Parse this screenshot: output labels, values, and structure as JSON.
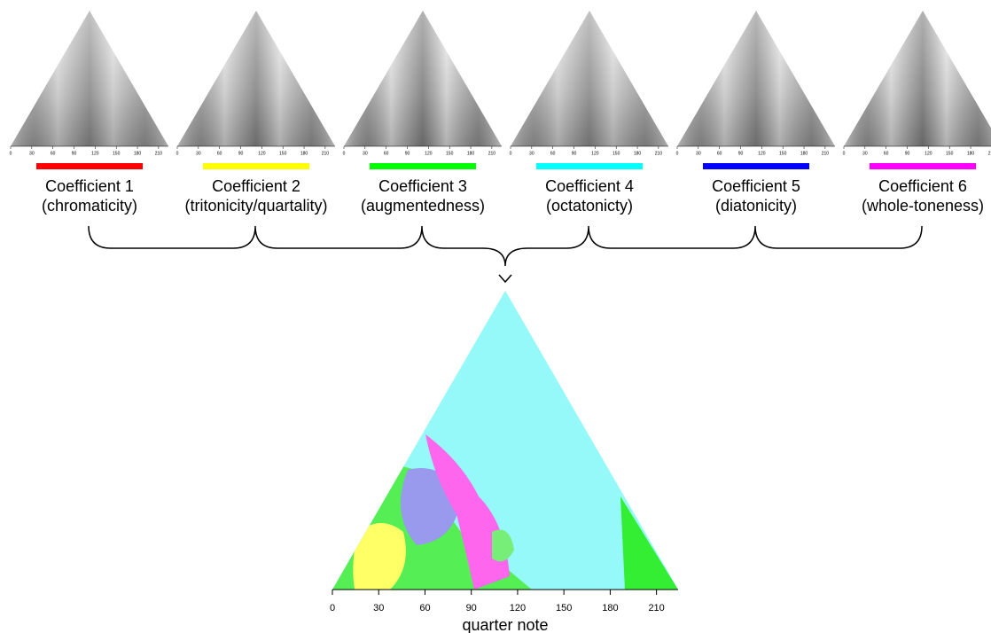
{
  "panels": [
    {
      "name": "Coefficient 1",
      "subtitle": "(chromaticity)",
      "color": "#ff0000"
    },
    {
      "name": "Coefficient 2",
      "subtitle": "(tritonicity/quartality)",
      "color": "#ffff00"
    },
    {
      "name": "Coefficient 3",
      "subtitle": "(augmentedness)",
      "color": "#00ff00"
    },
    {
      "name": "Coefficient 4",
      "subtitle": "(octatonicty)",
      "color": "#00ffff"
    },
    {
      "name": "Coefficient 5",
      "subtitle": "(diatonicity)",
      "color": "#0000ff"
    },
    {
      "name": "Coefficient 6",
      "subtitle": "(whole-toneness)",
      "color": "#ff00ff"
    }
  ],
  "axis": {
    "label": "quarter note",
    "xlim": [
      0,
      224
    ],
    "ticks": [
      0,
      30,
      60,
      90,
      120,
      150,
      180,
      210
    ]
  }
}
